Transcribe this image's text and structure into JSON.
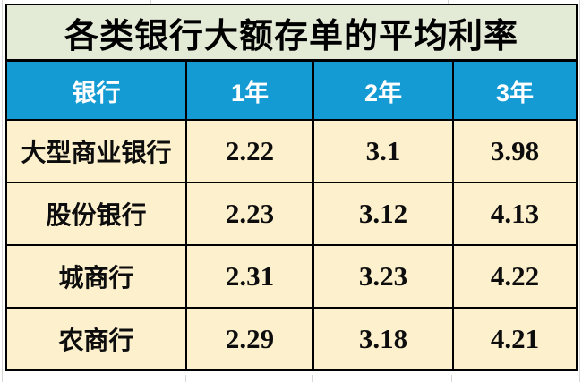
{
  "table": {
    "title": "各类银行大额存单的平均利率",
    "columns": [
      "银行",
      "1年",
      "2年",
      "3年"
    ],
    "rows": [
      {
        "bank": "大型商业银行",
        "values": [
          "2.22",
          "3.1",
          "3.98"
        ]
      },
      {
        "bank": "股份银行",
        "values": [
          "2.23",
          "3.12",
          "4.13"
        ]
      },
      {
        "bank": "城商行",
        "values": [
          "2.31",
          "3.23",
          "4.22"
        ]
      },
      {
        "bank": "农商行",
        "values": [
          "2.29",
          "3.18",
          "4.21"
        ]
      }
    ],
    "colors": {
      "title_background": "#e3ead6",
      "header_background": "#149bd3",
      "header_text": "#ffffff",
      "row_background": "#fdf0cc",
      "border": "#000000",
      "data_text": "#0d0d0d"
    }
  },
  "chart_data": {
    "type": "table",
    "title": "各类银行大额存单的平均利率",
    "columns": [
      "银行",
      "1年",
      "2年",
      "3年"
    ],
    "rows": [
      [
        "大型商业银行",
        2.22,
        3.1,
        3.98
      ],
      [
        "股份银行",
        2.23,
        3.12,
        4.13
      ],
      [
        "城商行",
        2.31,
        3.23,
        4.22
      ],
      [
        "农商行",
        2.29,
        3.18,
        4.21
      ]
    ]
  }
}
